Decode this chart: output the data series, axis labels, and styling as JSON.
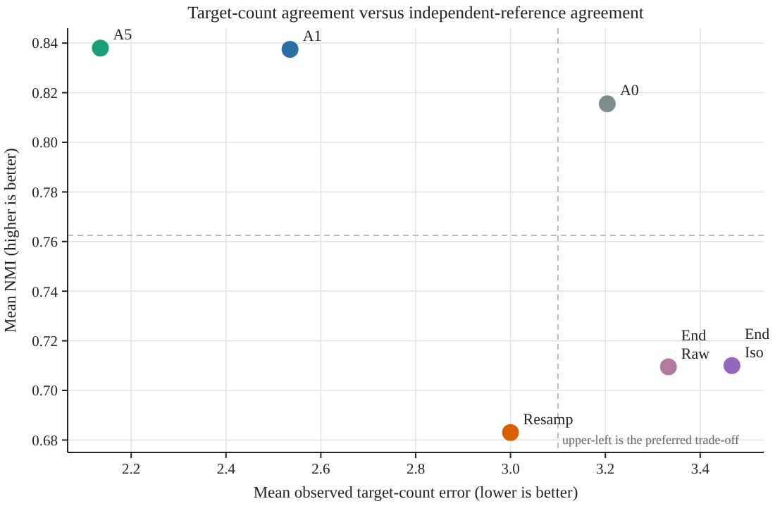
{
  "chart_data": {
    "type": "scatter",
    "title": "Target-count agreement versus independent-reference agreement",
    "xlabel": "Mean observed target-count error (lower is better)",
    "ylabel": "Mean NMI (higher is better)",
    "series": [
      {
        "name": "A5",
        "color": "#1b9e77",
        "x": [
          2.135
        ],
        "values": [
          0.838
        ]
      },
      {
        "name": "A1",
        "color": "#2c6ea3",
        "x": [
          2.535
        ],
        "values": [
          0.8375
        ]
      },
      {
        "name": "A0",
        "color": "#7f8c8d",
        "x": [
          3.204
        ],
        "values": [
          0.8155
        ]
      },
      {
        "name": "Resamp",
        "color": "#d95f02",
        "x": [
          3.0
        ],
        "values": [
          0.683
        ]
      },
      {
        "name": "End Raw",
        "color": "#b07aa1",
        "x": [
          3.333
        ],
        "values": [
          0.7095
        ]
      },
      {
        "name": "End Iso",
        "color": "#9467bd",
        "x": [
          3.467
        ],
        "values": [
          0.71
        ]
      }
    ],
    "xlim": [
      2.066,
      3.534
    ],
    "xticks": [
      2.2,
      2.4,
      2.6,
      2.8,
      {
        "value": 3,
        "label": "3.0"
      },
      3.2,
      3.4
    ],
    "ylim": [
      0.675,
      0.846
    ],
    "yticks": [
      0.68,
      {
        "value": 0.7,
        "label": "0.70"
      },
      0.72,
      0.74,
      0.76,
      0.78,
      {
        "value": 0.8,
        "label": "0.80"
      },
      0.82,
      0.84
    ],
    "ref_lines": [
      {
        "axis": "x",
        "value": 3.1,
        "color": "#bbbbbb",
        "line_style": "dashed"
      },
      {
        "axis": "y",
        "value": 0.7625,
        "color": "#bbbbbb",
        "line_style": "dashed"
      }
    ],
    "annotations": [
      "upper-left is the preferred trade-off"
    ],
    "grid": true,
    "marker": "circle"
  }
}
